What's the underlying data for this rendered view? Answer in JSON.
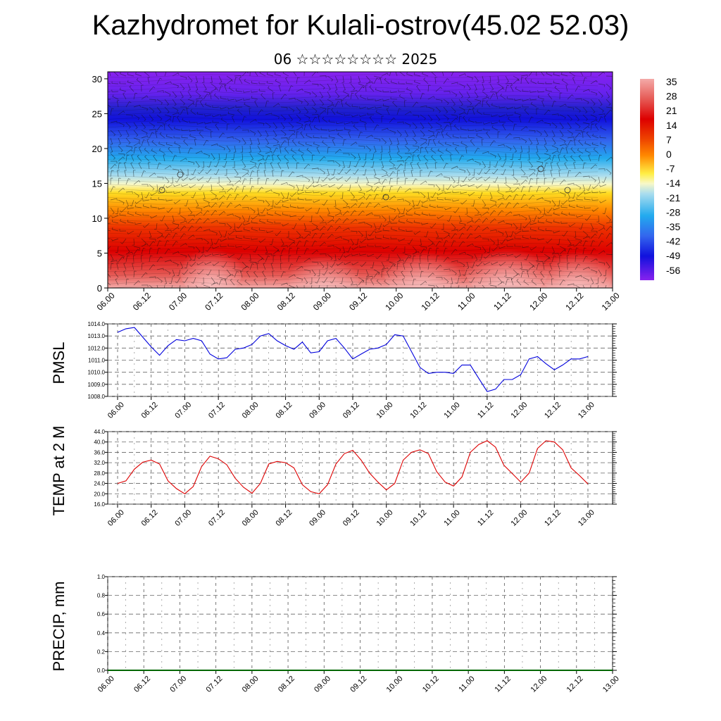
{
  "page": {
    "title": "Kazhydromet for Kulali-ostrov(45.02 52.03)",
    "subtitle": "06 ☆☆☆☆☆☆☆☆ 2025"
  },
  "chart_data": [
    {
      "type": "heatmap",
      "title": "",
      "xlabel": "",
      "ylabel": "",
      "x_tick_labels": [
        "06.00",
        "06.12",
        "07.00",
        "07.12",
        "08.00",
        "08.12",
        "09.00",
        "09.12",
        "10.00",
        "10.12",
        "11.00",
        "11.12",
        "12.00",
        "12.12",
        "13.00"
      ],
      "y_ticks": [
        0,
        5,
        10,
        15,
        20,
        25,
        30
      ],
      "ylim": [
        0,
        31
      ],
      "legend_position": "right",
      "colorbar_labels": [
        "35",
        "28",
        "21",
        "14",
        "7",
        "0",
        "-7",
        "-14",
        "-21",
        "-28",
        "-35",
        "-42",
        "-49",
        "-56"
      ],
      "colorbar_values": [
        35,
        28,
        21,
        14,
        7,
        0,
        -7,
        -14,
        -21,
        -28,
        -35,
        -42,
        -49,
        -56
      ],
      "colors": {
        "warmest": "#f4aaa8",
        "hot": "#dd0000",
        "orange": "#ff8800",
        "yellow": "#ffee44",
        "neutral": "#f8f8c8",
        "cyan": "#22aaee",
        "blue": "#1111dd",
        "coldest": "#8822ee"
      },
      "overlay": "wind barbs"
    },
    {
      "type": "line",
      "ylabel": "PMSL",
      "ylim": [
        1008.0,
        1014.0
      ],
      "y_ticks": [
        "1008.0",
        "1009.0",
        "1010.0",
        "1011.0",
        "1012.0",
        "1013.0",
        "1014.0"
      ],
      "x_tick_labels": [
        "06.00",
        "06.12",
        "07.00",
        "07.12",
        "08.00",
        "08.12",
        "09.00",
        "09.12",
        "10.00",
        "10.12",
        "11.00",
        "11.12",
        "12.00",
        "12.12",
        "13.00"
      ],
      "grid": true,
      "x": [
        "06.00",
        "06.03",
        "06.06",
        "06.09",
        "06.12",
        "06.15",
        "06.18",
        "06.21",
        "07.00",
        "07.03",
        "07.06",
        "07.09",
        "07.12",
        "07.15",
        "07.18",
        "07.21",
        "08.00",
        "08.03",
        "08.06",
        "08.09",
        "08.12",
        "08.15",
        "08.18",
        "08.21",
        "09.00",
        "09.03",
        "09.06",
        "09.09",
        "09.12",
        "09.15",
        "09.18",
        "09.21",
        "10.00",
        "10.03",
        "10.06",
        "10.09",
        "10.12",
        "10.15",
        "10.18",
        "10.21",
        "11.00",
        "11.03",
        "11.06",
        "11.09",
        "11.12",
        "11.15",
        "11.18",
        "11.21",
        "12.00",
        "12.03",
        "12.06",
        "12.09",
        "12.12",
        "12.15",
        "12.18",
        "12.21",
        "13.00"
      ],
      "series": [
        {
          "color": "#0000dd",
          "values": [
            1013.3,
            1013.6,
            1013.7,
            1012.9,
            1012.1,
            1011.4,
            1012.2,
            1012.7,
            1012.6,
            1012.8,
            1012.6,
            1011.5,
            1011.1,
            1011.2,
            1011.9,
            1012.0,
            1012.3,
            1013.0,
            1013.2,
            1012.6,
            1012.2,
            1011.9,
            1012.5,
            1011.6,
            1011.7,
            1012.6,
            1012.8,
            1012.0,
            1011.1,
            1011.5,
            1011.9,
            1012.0,
            1012.3,
            1013.1,
            1013.0,
            1011.7,
            1010.4,
            1009.9,
            1010.0,
            1010.0,
            1009.9,
            1010.6,
            1010.6,
            1009.5,
            1008.4,
            1008.6,
            1009.4,
            1009.4,
            1009.8,
            1011.1,
            1011.3,
            1010.7,
            1010.2,
            1010.6,
            1011.1,
            1011.1,
            1011.3
          ]
        }
      ]
    },
    {
      "type": "line",
      "ylabel": "TEMP at 2 M",
      "ylim": [
        16.0,
        44.0
      ],
      "y_ticks": [
        "16.0",
        "20.0",
        "24.0",
        "28.0",
        "32.0",
        "36.0",
        "40.0",
        "44.0"
      ],
      "x_tick_labels": [
        "06.00",
        "06.12",
        "07.00",
        "07.12",
        "08.00",
        "08.12",
        "09.00",
        "09.12",
        "10.00",
        "10.12",
        "11.00",
        "11.12",
        "12.00",
        "12.12",
        "13.00"
      ],
      "grid": true,
      "x": [
        "06.00",
        "06.03",
        "06.06",
        "06.09",
        "06.12",
        "06.15",
        "06.18",
        "06.21",
        "07.00",
        "07.03",
        "07.06",
        "07.09",
        "07.12",
        "07.15",
        "07.18",
        "07.21",
        "08.00",
        "08.03",
        "08.06",
        "08.09",
        "08.12",
        "08.15",
        "08.18",
        "08.21",
        "09.00",
        "09.03",
        "09.06",
        "09.09",
        "09.12",
        "09.15",
        "09.18",
        "09.21",
        "10.00",
        "10.03",
        "10.06",
        "10.09",
        "10.12",
        "10.15",
        "10.18",
        "10.21",
        "11.00",
        "11.03",
        "11.06",
        "11.09",
        "11.12",
        "11.15",
        "11.18",
        "11.21",
        "12.00",
        "12.03",
        "12.06",
        "12.09",
        "12.12",
        "12.15",
        "12.18",
        "12.21",
        "13.00"
      ],
      "series": [
        {
          "color": "#dd0000",
          "values": [
            24.0,
            25.0,
            29.5,
            32.2,
            33.0,
            31.5,
            25.0,
            22.0,
            20.0,
            22.8,
            30.5,
            34.5,
            33.5,
            31.2,
            26.0,
            22.5,
            20.2,
            24.0,
            31.5,
            32.5,
            32.0,
            30.0,
            23.5,
            20.8,
            20.0,
            23.5,
            31.5,
            35.5,
            36.8,
            33.0,
            28.0,
            24.5,
            21.5,
            24.0,
            33.0,
            36.0,
            37.0,
            35.5,
            28.5,
            24.5,
            23.0,
            26.5,
            36.0,
            39.0,
            40.5,
            38.0,
            31.0,
            27.8,
            24.5,
            28.0,
            37.5,
            40.5,
            40.0,
            37.0,
            30.0,
            27.0,
            23.8
          ]
        }
      ]
    },
    {
      "type": "line",
      "ylabel": "PRECIP, mm",
      "ylim": [
        0.0,
        1.0
      ],
      "y_ticks": [
        "0.0",
        "0.2",
        "0.4",
        "0.6",
        "0.8",
        "1.0"
      ],
      "x_tick_labels": [
        "06.00",
        "06.12",
        "07.00",
        "07.12",
        "08.00",
        "08.12",
        "09.00",
        "09.12",
        "10.00",
        "10.12",
        "11.00",
        "11.12",
        "12.00",
        "12.12",
        "13.00"
      ],
      "grid": true,
      "series": [
        {
          "color": "#006600",
          "values": [
            0,
            0,
            0,
            0,
            0,
            0,
            0,
            0,
            0,
            0,
            0,
            0,
            0,
            0,
            0
          ]
        }
      ]
    }
  ]
}
